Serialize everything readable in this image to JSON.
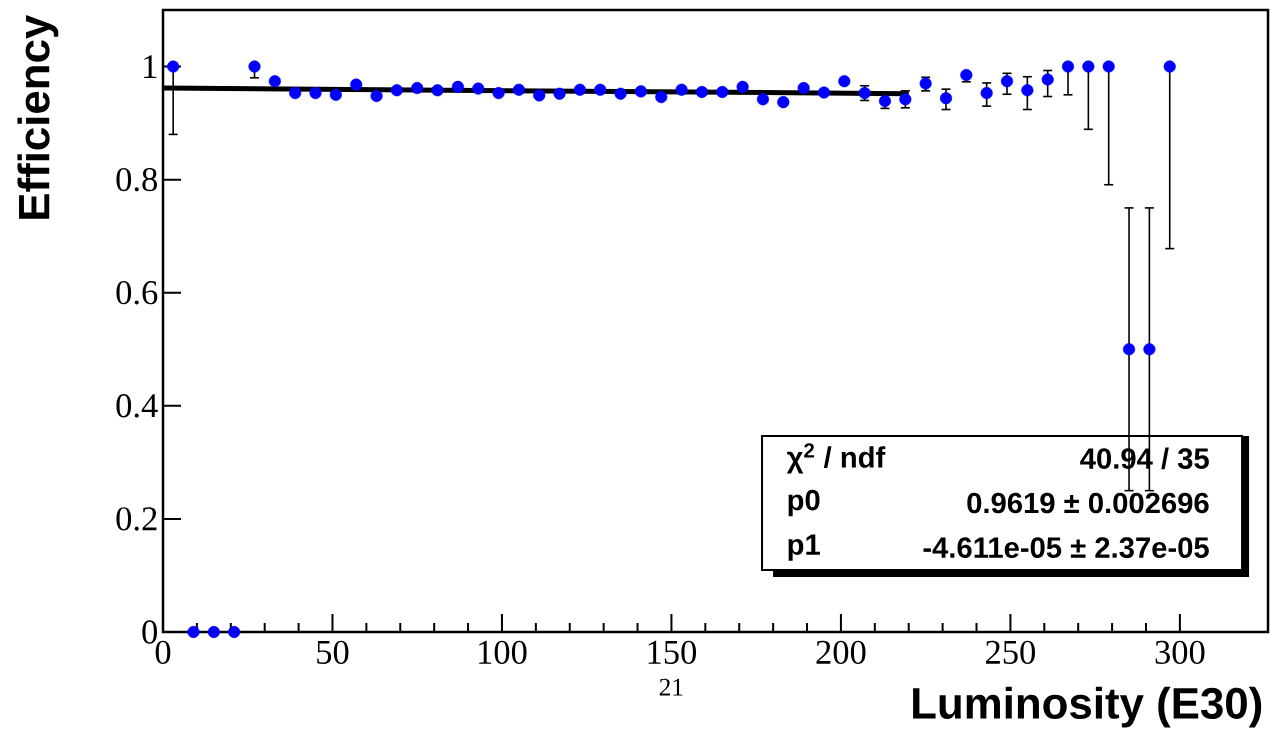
{
  "chart_data": {
    "type": "scatter",
    "xlabel": "Luminosity (E30)",
    "ylabel": "Efficiency",
    "xlim": [
      0,
      326
    ],
    "ylim": [
      0,
      1.1
    ],
    "xticks": [
      0,
      50,
      100,
      150,
      200,
      250,
      300
    ],
    "yticks": [
      0,
      0.2,
      0.4,
      0.6,
      0.8,
      1
    ],
    "series": [
      {
        "marker": "circle",
        "color": "#0000ff",
        "x": [
          3,
          9,
          15,
          21,
          27,
          33,
          39,
          45,
          51,
          57,
          63,
          69,
          75,
          81,
          87,
          93,
          99,
          105,
          111,
          117,
          123,
          129,
          135,
          141,
          147,
          153,
          159,
          165,
          171,
          177,
          183,
          189,
          195,
          201,
          207,
          213,
          219,
          225,
          231,
          237,
          243,
          249,
          255,
          261,
          267,
          273,
          279,
          285,
          291,
          297
        ],
        "values": [
          1.0,
          0,
          0,
          0,
          1.0,
          0.974,
          0.953,
          0.953,
          0.95,
          0.968,
          0.948,
          0.958,
          0.962,
          0.958,
          0.964,
          0.961,
          0.953,
          0.959,
          0.949,
          0.952,
          0.959,
          0.959,
          0.952,
          0.956,
          0.946,
          0.959,
          0.955,
          0.955,
          0.964,
          0.942,
          0.937,
          0.962,
          0.954,
          0.974,
          0.953,
          0.939,
          0.942,
          0.97,
          0.944,
          0.985,
          0.953,
          0.974,
          0.958,
          0.977,
          1.0,
          1.0,
          1.0,
          0.5,
          0.5,
          1.0
        ],
        "errors": [
          [
            0.88,
            1.0
          ],
          null,
          null,
          null,
          [
            0.98,
            1.0
          ],
          null,
          null,
          null,
          null,
          null,
          null,
          null,
          null,
          null,
          null,
          null,
          null,
          null,
          null,
          null,
          null,
          null,
          null,
          null,
          null,
          null,
          null,
          null,
          null,
          null,
          null,
          null,
          null,
          null,
          [
            0.94,
            0.966
          ],
          [
            0.926,
            0.952
          ],
          [
            0.927,
            0.957
          ],
          [
            0.957,
            0.981
          ],
          [
            0.924,
            0.96
          ],
          [
            0.973,
            0.985
          ],
          [
            0.93,
            0.971
          ],
          [
            0.951,
            0.988
          ],
          [
            0.924,
            0.982
          ],
          [
            0.947,
            0.993
          ],
          [
            0.95,
            1.0
          ],
          [
            0.889,
            1.0
          ],
          [
            0.791,
            1.0
          ],
          [
            0.25,
            0.75
          ],
          [
            0.25,
            0.75
          ],
          [
            0.678,
            1.0
          ]
        ]
      },
      {
        "type": "line",
        "marker": "none",
        "color": "#000000",
        "x": [
          0,
          220
        ],
        "values": [
          0.962,
          0.952
        ]
      }
    ],
    "annotations": [
      "χ$^{2}$ / ndf",
      "40.94 / 35",
      "p0",
      "0.9619 ± 0.002696",
      "p1",
      "-4.611e-05 ± 2.37e-05",
      "21"
    ]
  }
}
